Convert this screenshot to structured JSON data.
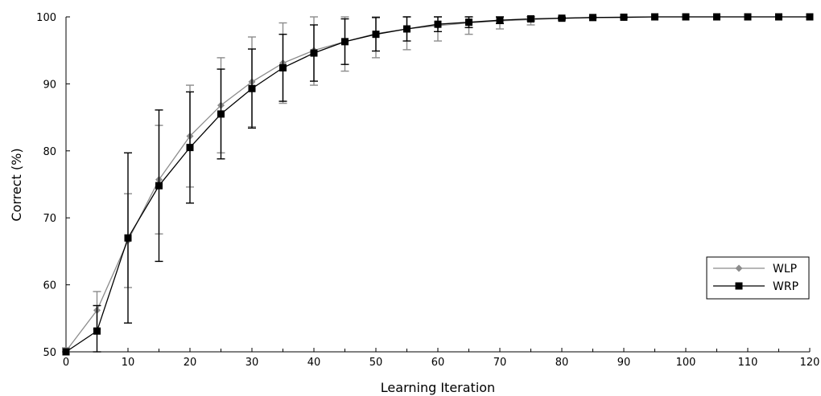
{
  "chart_data": {
    "type": "line",
    "title": "",
    "xlabel": "Learning Iteration",
    "ylabel": "Correct (%)",
    "xlim": [
      0,
      120
    ],
    "ylim": [
      50,
      100
    ],
    "xticks": [
      0,
      10,
      20,
      30,
      40,
      50,
      60,
      70,
      80,
      90,
      100,
      110,
      120
    ],
    "yticks": [
      50,
      60,
      70,
      80,
      90,
      100
    ],
    "grid": false,
    "legend_position": "bottom-right",
    "x": [
      0,
      5,
      10,
      15,
      20,
      25,
      30,
      35,
      40,
      45,
      50,
      55,
      60,
      65,
      70,
      75,
      80,
      85,
      90,
      95,
      100,
      105,
      110,
      115,
      120
    ],
    "series": [
      {
        "name": "WLP",
        "color": "#8c8c8c",
        "marker": "diamond",
        "values": [
          50.1,
          56.2,
          66.6,
          75.7,
          82.2,
          86.8,
          90.3,
          93.1,
          95.0,
          96.3,
          97.5,
          98.2,
          98.7,
          99.1,
          99.4,
          99.6,
          99.8,
          99.9,
          99.9,
          100,
          100,
          100,
          100,
          100,
          100
        ],
        "err": [
          0.5,
          2.8,
          7.0,
          8.1,
          7.6,
          7.1,
          6.7,
          6.0,
          5.2,
          4.4,
          3.6,
          3.1,
          2.3,
          1.7,
          1.2,
          0.8,
          0.3,
          0.1,
          0.1,
          0,
          0,
          0,
          0,
          0,
          0
        ]
      },
      {
        "name": "WRP",
        "color": "#000000",
        "marker": "square",
        "values": [
          50.0,
          53.1,
          67.0,
          74.8,
          80.5,
          85.5,
          89.3,
          92.4,
          94.6,
          96.3,
          97.4,
          98.2,
          98.9,
          99.2,
          99.5,
          99.7,
          99.8,
          99.9,
          99.95,
          100,
          100,
          100,
          100,
          100,
          100
        ],
        "err": [
          0,
          3.8,
          12.7,
          11.3,
          8.3,
          6.7,
          5.9,
          5.0,
          4.2,
          3.4,
          2.5,
          1.8,
          1.1,
          0.8,
          0.5,
          0.3,
          0.1,
          0,
          0,
          0,
          0,
          0,
          0,
          0,
          0
        ]
      }
    ]
  }
}
